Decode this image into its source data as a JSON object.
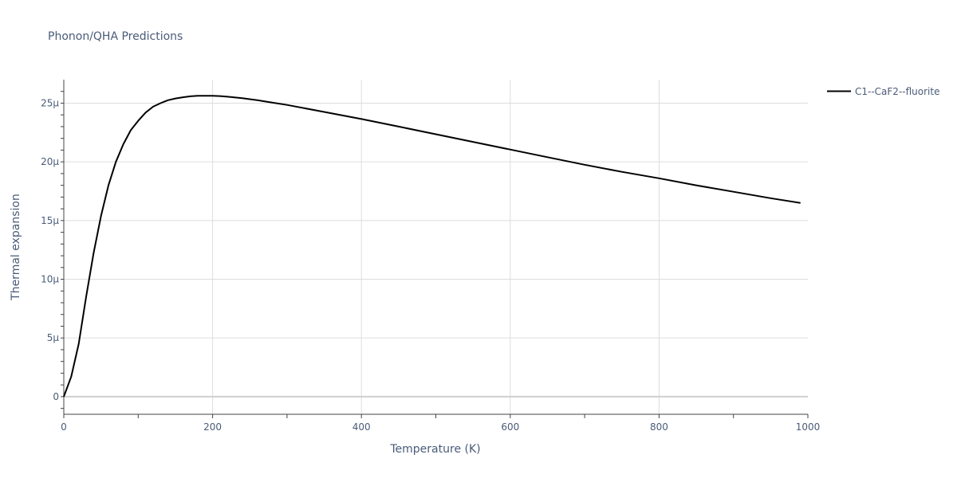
{
  "chart_data": {
    "type": "line",
    "title": "Phonon/QHA Predictions",
    "xlabel": "Temperature (K)",
    "ylabel": "Thermal expansion",
    "xlim": [
      0,
      1000
    ],
    "ylim": [
      -1.5e-06,
      2.7e-05
    ],
    "x_ticks": [
      0,
      200,
      400,
      600,
      800,
      1000
    ],
    "x_tick_labels": [
      "0",
      "200",
      "400",
      "600",
      "800",
      "1000"
    ],
    "y_ticks": [
      0,
      5e-06,
      1e-05,
      1.5e-05,
      2e-05,
      2.5e-05
    ],
    "y_tick_labels": [
      "0",
      "5μ",
      "10μ",
      "15μ",
      "20μ",
      "25μ"
    ],
    "grid": true,
    "legend_position": "top-right-outside",
    "series": [
      {
        "name": "C1--CaF2--fluorite",
        "color": "#000000",
        "x": [
          0,
          10,
          20,
          30,
          40,
          50,
          60,
          70,
          80,
          90,
          100,
          110,
          120,
          130,
          140,
          150,
          160,
          170,
          180,
          190,
          200,
          210,
          220,
          240,
          260,
          280,
          300,
          350,
          400,
          450,
          500,
          550,
          600,
          650,
          700,
          750,
          800,
          850,
          900,
          950,
          990
        ],
        "y": [
          0,
          1.7e-06,
          4.5e-06,
          8.5e-06,
          1.22e-05,
          1.54e-05,
          1.8e-05,
          2e-05,
          2.15e-05,
          2.27e-05,
          2.35e-05,
          2.42e-05,
          2.47e-05,
          2.5e-05,
          2.525e-05,
          2.54e-05,
          2.55e-05,
          2.558e-05,
          2.562e-05,
          2.563e-05,
          2.562e-05,
          2.56e-05,
          2.555e-05,
          2.542e-05,
          2.525e-05,
          2.505e-05,
          2.485e-05,
          2.425e-05,
          2.365e-05,
          2.3e-05,
          2.235e-05,
          2.17e-05,
          2.105e-05,
          2.04e-05,
          1.975e-05,
          1.915e-05,
          1.86e-05,
          1.8e-05,
          1.745e-05,
          1.69e-05,
          1.65e-05
        ]
      }
    ]
  }
}
